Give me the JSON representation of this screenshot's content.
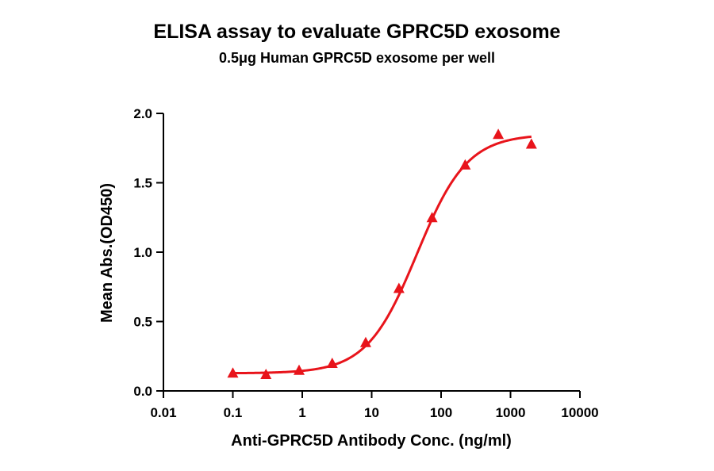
{
  "chart_data": {
    "type": "scatter",
    "title": "ELISA assay to evaluate GPRC5D exosome",
    "subtitle": "0.5μg Human GPRC5D exosome per well",
    "xlabel": "Anti-GPRC5D Antibody Conc. (ng/ml)",
    "ylabel": "Mean Abs.(OD450)",
    "x_scale": "log",
    "xlim": [
      0.01,
      10000
    ],
    "ylim": [
      0.0,
      2.0
    ],
    "x_ticks": [
      "0.01",
      "0.1",
      "1",
      "10",
      "100",
      "1000",
      "10000"
    ],
    "y_ticks": [
      "0.0",
      "0.5",
      "1.0",
      "1.5",
      "2.0"
    ],
    "grid": false,
    "legend": "none",
    "series": [
      {
        "marker": "triangle",
        "color": "#e8141b",
        "x": [
          0.1,
          0.3,
          0.9,
          2.7,
          8.2,
          24.7,
          74.1,
          222.2,
          666.7,
          2000
        ],
        "y": [
          0.13,
          0.12,
          0.15,
          0.2,
          0.35,
          0.74,
          1.25,
          1.63,
          1.85,
          1.78
        ]
      }
    ],
    "fit": {
      "type": "4PL",
      "bottom": 0.127,
      "top": 1.85,
      "ec50": 45,
      "hill": 1.2,
      "color": "#e8141b"
    }
  }
}
